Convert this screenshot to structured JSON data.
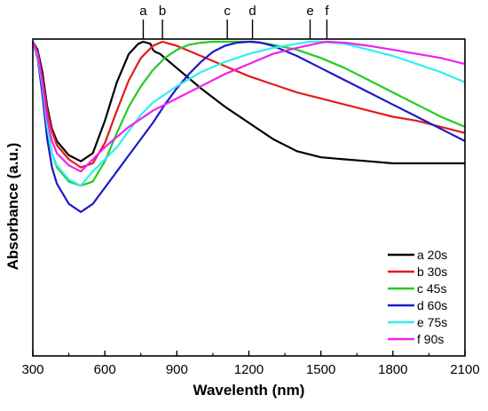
{
  "chart_data": {
    "type": "line",
    "title": "",
    "xlabel": "Wavelenth (nm)",
    "ylabel": "Absorbance (a.u.)",
    "xlim": [
      300,
      2100
    ],
    "ylim": [
      0,
      1
    ],
    "x_ticks": [
      300,
      600,
      900,
      1200,
      1500,
      1800,
      2100
    ],
    "y_ticks_shown": false,
    "grid": false,
    "legend_position": "bottom-right",
    "peak_markers": [
      {
        "label": "a",
        "x": 760
      },
      {
        "label": "b",
        "x": 840
      },
      {
        "label": "c",
        "x": 1110
      },
      {
        "label": "d",
        "x": 1215
      },
      {
        "label": "e",
        "x": 1455
      },
      {
        "label": "f",
        "x": 1525
      }
    ],
    "series": [
      {
        "name": "a 20s",
        "color": "#000000",
        "x": [
          300,
          320,
          340,
          360,
          380,
          400,
          450,
          500,
          550,
          600,
          650,
          700,
          740,
          760,
          790,
          800,
          810,
          830,
          850,
          900,
          1000,
          1100,
          1200,
          1300,
          1400,
          1500,
          1600,
          1700,
          1800,
          1900,
          2000,
          2100
        ],
        "y": [
          1.0,
          0.96,
          0.85,
          0.68,
          0.57,
          0.51,
          0.44,
          0.41,
          0.45,
          0.61,
          0.8,
          0.94,
          0.99,
          1.0,
          0.99,
          0.96,
          0.95,
          0.94,
          0.92,
          0.87,
          0.77,
          0.68,
          0.6,
          0.52,
          0.46,
          0.43,
          0.42,
          0.41,
          0.4,
          0.4,
          0.4,
          0.4
        ]
      },
      {
        "name": "b 30s",
        "color": "#e41a1c",
        "x": [
          300,
          320,
          340,
          360,
          380,
          400,
          450,
          500,
          550,
          600,
          650,
          700,
          750,
          800,
          840,
          870,
          900,
          1000,
          1100,
          1200,
          1300,
          1400,
          1500,
          1600,
          1700,
          1800,
          1900,
          2000,
          2100
        ],
        "y": [
          1.0,
          0.95,
          0.82,
          0.66,
          0.56,
          0.49,
          0.42,
          0.38,
          0.4,
          0.5,
          0.66,
          0.81,
          0.92,
          0.98,
          1.0,
          0.99,
          0.98,
          0.93,
          0.88,
          0.83,
          0.79,
          0.75,
          0.72,
          0.69,
          0.66,
          0.63,
          0.61,
          0.58,
          0.55
        ]
      },
      {
        "name": "c 45s",
        "color": "#22cc22",
        "x": [
          300,
          320,
          340,
          360,
          380,
          400,
          450,
          500,
          550,
          600,
          650,
          700,
          750,
          800,
          850,
          900,
          950,
          1000,
          1050,
          1100,
          1150,
          1200,
          1250,
          1300,
          1400,
          1500,
          1600,
          1700,
          1800,
          1900,
          2000,
          2100
        ],
        "y": [
          1.0,
          0.93,
          0.77,
          0.58,
          0.45,
          0.38,
          0.31,
          0.29,
          0.31,
          0.41,
          0.55,
          0.68,
          0.78,
          0.86,
          0.92,
          0.96,
          0.985,
          0.995,
          1.0,
          1.0,
          1.0,
          1.0,
          0.995,
          0.985,
          0.96,
          0.92,
          0.87,
          0.81,
          0.75,
          0.69,
          0.63,
          0.58
        ]
      },
      {
        "name": "d 60s",
        "color": "#1a1acc",
        "x": [
          300,
          320,
          340,
          360,
          380,
          400,
          450,
          500,
          550,
          600,
          650,
          700,
          750,
          800,
          850,
          900,
          950,
          1000,
          1050,
          1100,
          1150,
          1200,
          1215,
          1250,
          1300,
          1400,
          1500,
          1600,
          1700,
          1800,
          1900,
          2000,
          2100
        ],
        "y": [
          1.0,
          0.92,
          0.74,
          0.52,
          0.38,
          0.3,
          0.2,
          0.16,
          0.2,
          0.28,
          0.36,
          0.44,
          0.52,
          0.6,
          0.69,
          0.77,
          0.84,
          0.9,
          0.95,
          0.98,
          0.995,
          1.0,
          1.0,
          0.995,
          0.98,
          0.93,
          0.87,
          0.81,
          0.75,
          0.69,
          0.63,
          0.57,
          0.51
        ]
      },
      {
        "name": "e 75s",
        "color": "#33eeee",
        "x": [
          300,
          320,
          340,
          360,
          380,
          400,
          450,
          500,
          550,
          600,
          650,
          700,
          750,
          800,
          850,
          900,
          1000,
          1100,
          1200,
          1300,
          1400,
          1455,
          1500,
          1600,
          1700,
          1800,
          1900,
          2000,
          2100
        ],
        "y": [
          1.0,
          0.93,
          0.78,
          0.58,
          0.45,
          0.39,
          0.32,
          0.29,
          0.36,
          0.42,
          0.48,
          0.56,
          0.64,
          0.7,
          0.74,
          0.78,
          0.85,
          0.9,
          0.94,
          0.97,
          0.99,
          1.0,
          1.0,
          0.99,
          0.96,
          0.93,
          0.89,
          0.85,
          0.8
        ]
      },
      {
        "name": "f 90s",
        "color": "#ee22ee",
        "x": [
          300,
          320,
          340,
          360,
          380,
          400,
          450,
          500,
          550,
          600,
          650,
          700,
          750,
          800,
          850,
          900,
          1000,
          1100,
          1200,
          1300,
          1400,
          1500,
          1525,
          1600,
          1700,
          1800,
          1900,
          2000,
          2100
        ],
        "y": [
          1.0,
          0.94,
          0.8,
          0.62,
          0.51,
          0.45,
          0.39,
          0.36,
          0.42,
          0.48,
          0.53,
          0.58,
          0.62,
          0.66,
          0.69,
          0.72,
          0.78,
          0.84,
          0.89,
          0.94,
          0.97,
          0.995,
          1.0,
          0.995,
          0.98,
          0.96,
          0.94,
          0.92,
          0.89
        ]
      }
    ]
  }
}
